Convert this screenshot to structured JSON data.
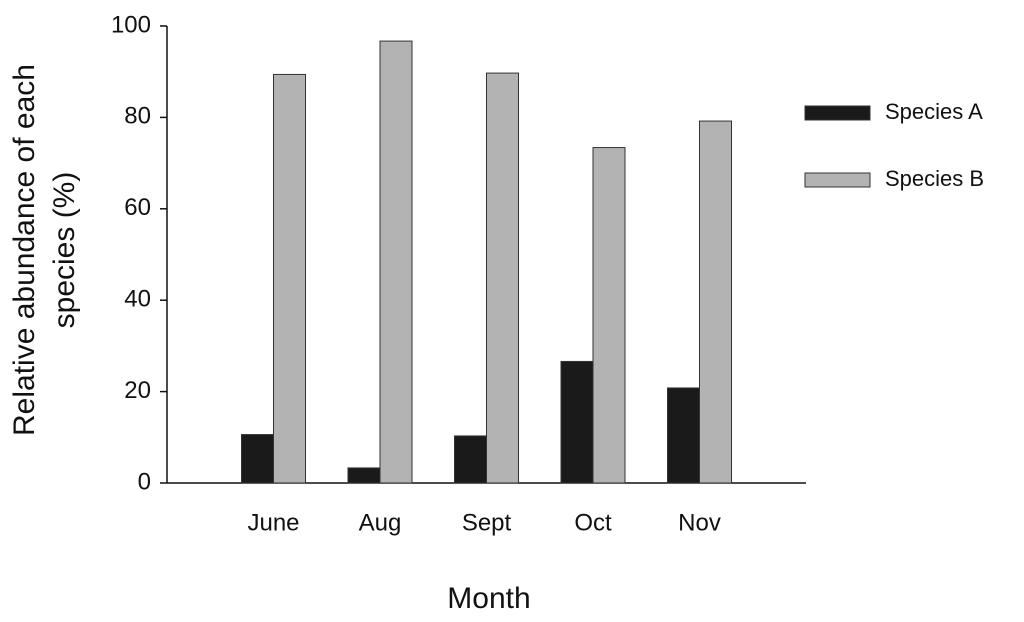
{
  "chart_data": {
    "type": "bar",
    "x_label": "Month",
    "y_label": "Relative abundance of each species (%)",
    "categories": [
      "June",
      "Aug",
      "Sept",
      "Oct",
      "Nov"
    ],
    "series": [
      {
        "name": "Species A",
        "color": "#1a1a1a",
        "values": [
          10.6,
          3.3,
          10.3,
          26.6,
          20.8
        ]
      },
      {
        "name": "Species B",
        "color": "#b3b3b3",
        "values": [
          89.4,
          96.7,
          89.7,
          73.4,
          79.2
        ]
      }
    ],
    "ylim": [
      0,
      100
    ],
    "yticks": [
      0,
      20,
      40,
      60,
      80,
      100
    ],
    "grid": false,
    "legend": "right"
  }
}
